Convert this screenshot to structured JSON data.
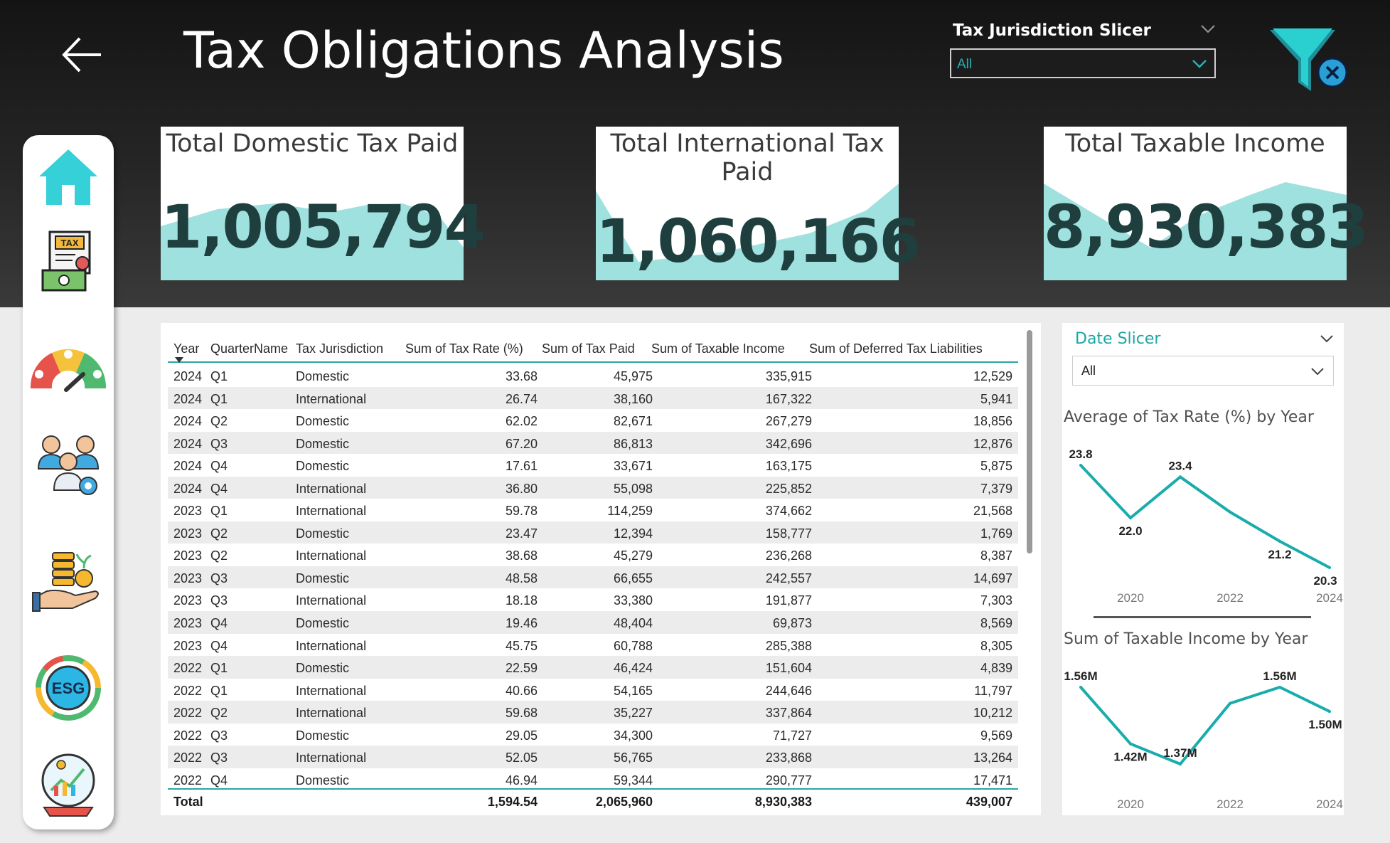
{
  "header": {
    "title": "Tax Obligations Analysis",
    "slicer_label": "Tax Jurisdiction Slicer",
    "slicer_value": "All"
  },
  "kpis": [
    {
      "title": "Total Domestic Tax Paid",
      "value": "1,005,794"
    },
    {
      "title": "Total International Tax Paid",
      "value": "1,060,166"
    },
    {
      "title": "Total Taxable Income",
      "value": "8,930,383"
    }
  ],
  "nav": {
    "items": [
      "home",
      "tax",
      "gauge",
      "team",
      "finance",
      "esg",
      "investment"
    ]
  },
  "table": {
    "columns": [
      "Year",
      "QuarterName",
      "Tax Jurisdiction",
      "Sum of Tax Rate (%)",
      "Sum of Tax Paid",
      "Sum of Taxable Income",
      "Sum of Deferred Tax Liabilities"
    ],
    "rows": [
      [
        "2024",
        "Q1",
        "Domestic",
        "33.68",
        "45,975",
        "335,915",
        "12,529"
      ],
      [
        "2024",
        "Q1",
        "International",
        "26.74",
        "38,160",
        "167,322",
        "5,941"
      ],
      [
        "2024",
        "Q2",
        "Domestic",
        "62.02",
        "82,671",
        "267,279",
        "18,856"
      ],
      [
        "2024",
        "Q3",
        "Domestic",
        "67.20",
        "86,813",
        "342,696",
        "12,876"
      ],
      [
        "2024",
        "Q4",
        "Domestic",
        "17.61",
        "33,671",
        "163,175",
        "5,875"
      ],
      [
        "2024",
        "Q4",
        "International",
        "36.80",
        "55,098",
        "225,852",
        "7,379"
      ],
      [
        "2023",
        "Q1",
        "International",
        "59.78",
        "114,259",
        "374,662",
        "21,568"
      ],
      [
        "2023",
        "Q2",
        "Domestic",
        "23.47",
        "12,394",
        "158,777",
        "1,769"
      ],
      [
        "2023",
        "Q2",
        "International",
        "38.68",
        "45,279",
        "236,268",
        "8,387"
      ],
      [
        "2023",
        "Q3",
        "Domestic",
        "48.58",
        "66,655",
        "242,557",
        "14,697"
      ],
      [
        "2023",
        "Q3",
        "International",
        "18.18",
        "33,380",
        "191,877",
        "7,303"
      ],
      [
        "2023",
        "Q4",
        "Domestic",
        "19.46",
        "48,404",
        "69,873",
        "8,569"
      ],
      [
        "2023",
        "Q4",
        "International",
        "45.75",
        "60,788",
        "285,388",
        "8,305"
      ],
      [
        "2022",
        "Q1",
        "Domestic",
        "22.59",
        "46,424",
        "151,604",
        "4,839"
      ],
      [
        "2022",
        "Q1",
        "International",
        "40.66",
        "54,165",
        "244,646",
        "11,797"
      ],
      [
        "2022",
        "Q2",
        "International",
        "59.68",
        "35,227",
        "337,864",
        "10,212"
      ],
      [
        "2022",
        "Q3",
        "Domestic",
        "29.05",
        "34,300",
        "71,727",
        "9,569"
      ],
      [
        "2022",
        "Q3",
        "International",
        "52.05",
        "56,765",
        "233,868",
        "13,264"
      ],
      [
        "2022",
        "Q4",
        "Domestic",
        "46.94",
        "59,344",
        "290,777",
        "17,471"
      ]
    ],
    "total": [
      "Total",
      "",
      "",
      "1,594.54",
      "2,065,960",
      "8,930,383",
      "439,007"
    ]
  },
  "date_slicer": {
    "title": "Date Slicer",
    "value": "All"
  },
  "chart_data": [
    {
      "type": "line",
      "title": "Average of Tax Rate (%) by Year",
      "x": [
        2019,
        2020,
        2021,
        2022,
        2023,
        2024
      ],
      "values": [
        23.8,
        22.0,
        23.4,
        22.2,
        21.2,
        20.3
      ],
      "data_labels": [
        "23.8",
        "22.0",
        "23.4",
        "",
        "21.2",
        "20.3"
      ],
      "x_ticks": [
        "2020",
        "2022",
        "2024"
      ],
      "color": "#1aacac"
    },
    {
      "type": "line",
      "title": "Sum of Taxable Income by Year",
      "x": [
        2019,
        2020,
        2021,
        2022,
        2023,
        2024
      ],
      "values": [
        1.56,
        1.42,
        1.37,
        1.52,
        1.56,
        1.5
      ],
      "data_labels": [
        "1.56M",
        "1.42M",
        "1.37M",
        "",
        "1.56M",
        "1.50M"
      ],
      "x_ticks": [
        "2020",
        "2022",
        "2024"
      ],
      "color": "#1aacac"
    }
  ]
}
